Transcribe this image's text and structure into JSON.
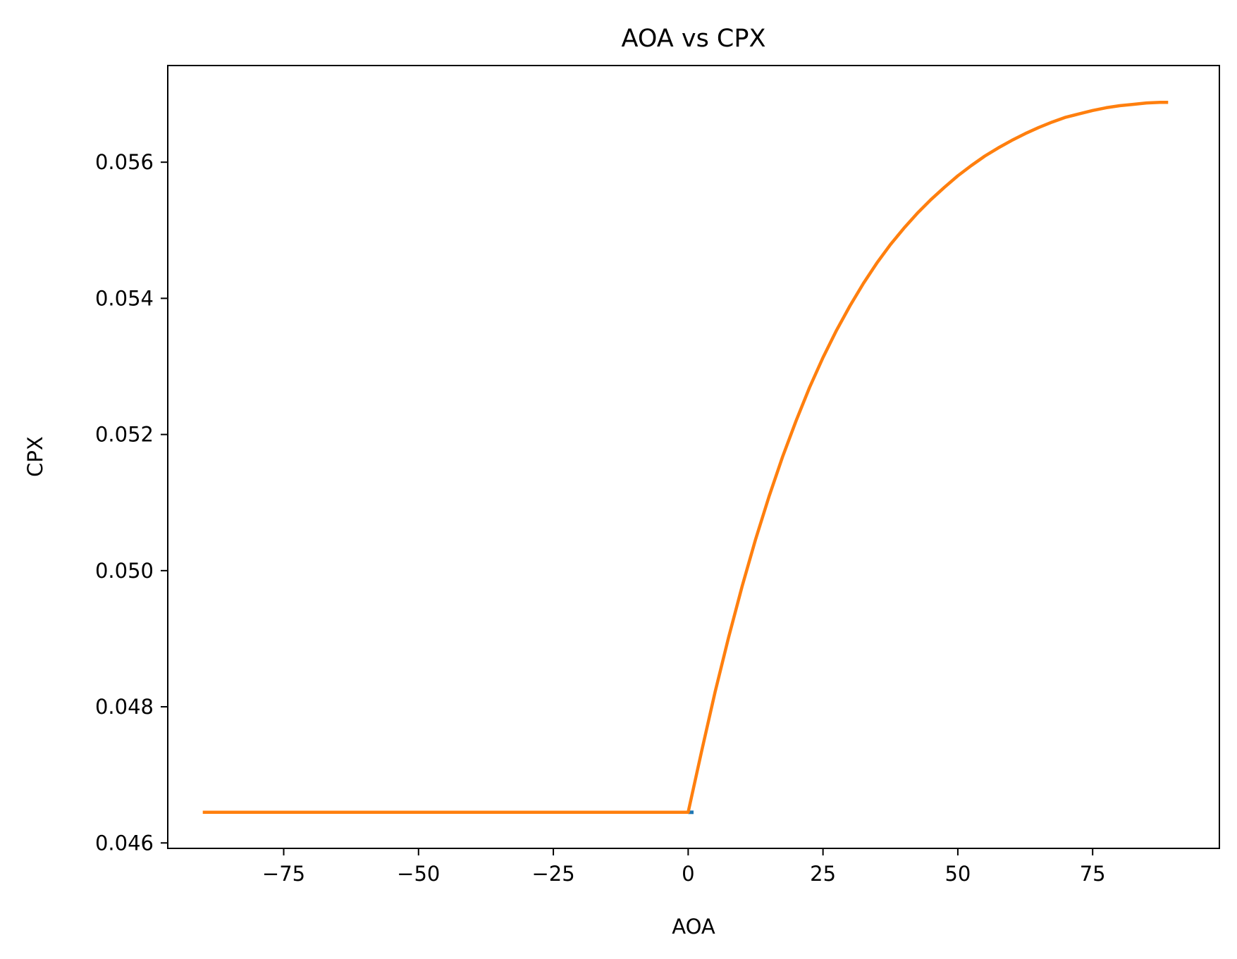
{
  "chart_data": {
    "type": "line",
    "title": "AOA vs CPX",
    "xlabel": "AOA",
    "ylabel": "CPX",
    "xlim": [
      -96.5,
      98.5
    ],
    "ylim": [
      0.04592,
      0.05742
    ],
    "xticks": [
      -75,
      -50,
      -25,
      0,
      25,
      50,
      75
    ],
    "xtick_labels": [
      "−75",
      "−50",
      "−25",
      "0",
      "25",
      "50",
      "75"
    ],
    "yticks": [
      0.046,
      0.048,
      0.05,
      0.052,
      0.054,
      0.056
    ],
    "ytick_labels": [
      "0.046",
      "0.048",
      "0.050",
      "0.052",
      "0.054",
      "0.056"
    ],
    "grid": false,
    "legend": "none",
    "series": [
      {
        "color": "#1f77b4",
        "x": [
          0,
          1
        ],
        "y": [
          0.04645,
          0.04645
        ]
      },
      {
        "color": "#ff7f0e",
        "x": [
          -90,
          -80,
          -70,
          -60,
          -50,
          -40,
          -30,
          -20,
          -10,
          0,
          2.5,
          5,
          7.5,
          10,
          12.5,
          15,
          17.5,
          20,
          22.5,
          25,
          27.5,
          30,
          32.5,
          35,
          37.5,
          40,
          42.5,
          45,
          47.5,
          50,
          52.5,
          55,
          57.5,
          60,
          62.5,
          65,
          67.5,
          70,
          72.5,
          75,
          77.5,
          80,
          82.5,
          85,
          87.5,
          89
        ],
        "y": [
          0.04645,
          0.04645,
          0.04645,
          0.04645,
          0.04645,
          0.04645,
          0.04645,
          0.04645,
          0.04645,
          0.04645,
          0.04735,
          0.04822,
          0.04902,
          0.04977,
          0.05046,
          0.05109,
          0.05167,
          0.0522,
          0.05269,
          0.05313,
          0.05353,
          0.05389,
          0.05422,
          0.05452,
          0.05479,
          0.05503,
          0.05525,
          0.05545,
          0.05563,
          0.0558,
          0.05595,
          0.05609,
          0.05621,
          0.05632,
          0.05642,
          0.05651,
          0.05659,
          0.05666,
          0.05671,
          0.05676,
          0.0568,
          0.05683,
          0.05685,
          0.05687,
          0.05688,
          0.05688
        ]
      }
    ]
  }
}
